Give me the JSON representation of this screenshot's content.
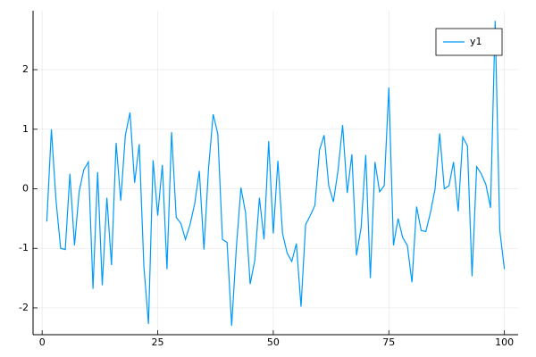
{
  "chart_data": {
    "type": "line",
    "x": [
      1,
      2,
      3,
      4,
      5,
      6,
      7,
      8,
      9,
      10,
      11,
      12,
      13,
      14,
      15,
      16,
      17,
      18,
      19,
      20,
      21,
      22,
      23,
      24,
      25,
      26,
      27,
      28,
      29,
      30,
      31,
      32,
      33,
      34,
      35,
      36,
      37,
      38,
      39,
      40,
      41,
      42,
      43,
      44,
      45,
      46,
      47,
      48,
      49,
      50,
      51,
      52,
      53,
      54,
      55,
      56,
      57,
      58,
      59,
      60,
      61,
      62,
      63,
      64,
      65,
      66,
      67,
      68,
      69,
      70,
      71,
      72,
      73,
      74,
      75,
      76,
      77,
      78,
      79,
      80,
      81,
      82,
      83,
      84,
      85,
      86,
      87,
      88,
      89,
      90,
      91,
      92,
      93,
      94,
      95,
      96,
      97,
      98,
      99,
      100
    ],
    "series": [
      {
        "name": "y1",
        "color": "#009af9",
        "values": [
          -0.55,
          1.0,
          -0.2,
          -1.0,
          -1.02,
          0.25,
          -0.95,
          -0.05,
          0.32,
          0.45,
          -1.68,
          0.28,
          -1.62,
          -0.15,
          -1.28,
          0.77,
          -0.2,
          0.9,
          1.28,
          0.1,
          0.75,
          -1.3,
          -2.27,
          0.48,
          -0.45,
          0.4,
          -1.35,
          0.95,
          -0.48,
          -0.58,
          -0.85,
          -0.6,
          -0.25,
          0.3,
          -1.02,
          0.35,
          1.25,
          0.92,
          -0.85,
          -0.9,
          -2.3,
          -1.0,
          0.02,
          -0.4,
          -1.6,
          -1.2,
          -0.15,
          -0.85,
          0.8,
          -0.75,
          0.47,
          -0.75,
          -1.08,
          -1.22,
          -0.92,
          -1.98,
          -0.6,
          -0.45,
          -0.28,
          0.65,
          0.9,
          0.05,
          -0.22,
          0.3,
          1.07,
          -0.07,
          0.58,
          -1.12,
          -0.65,
          0.57,
          -1.5,
          0.45,
          -0.05,
          0.05,
          1.7,
          -0.95,
          -0.5,
          -0.82,
          -0.95,
          -1.57,
          -0.3,
          -0.7,
          -0.72,
          -0.4,
          0.0,
          0.93,
          0.0,
          0.05,
          0.45,
          -0.38,
          0.87,
          0.72,
          -1.47,
          0.37,
          0.25,
          0.07,
          -0.32,
          2.82,
          -0.7,
          -1.35
        ]
      }
    ],
    "xlim": [
      -1.97,
      102.97
    ],
    "ylim": [
      -2.45,
      2.99
    ],
    "xticks": [
      0,
      25,
      50,
      75,
      100
    ],
    "yticks": [
      -2,
      -1,
      0,
      1,
      2
    ],
    "grid": true,
    "legend": "top-right"
  }
}
